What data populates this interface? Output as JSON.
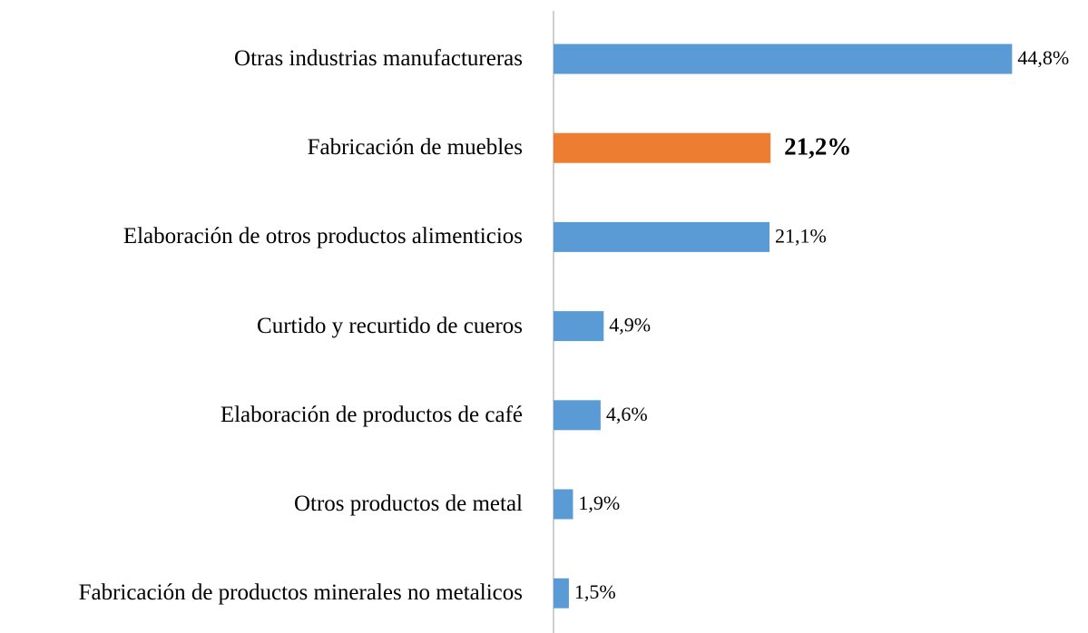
{
  "chart_data": {
    "type": "barh",
    "categories": [
      "Otras industrias manufactureras",
      "Fabricación de muebles",
      "Elaboración de otros productos alimenticios",
      "Curtido y recurtido de cueros",
      "Elaboración de productos de café",
      "Otros productos de metal",
      "Fabricación de productos minerales no metalicos"
    ],
    "values": [
      44.8,
      21.2,
      21.1,
      4.9,
      4.6,
      1.9,
      1.5
    ],
    "value_labels": [
      "44,8%",
      "21,2%",
      "21,1%",
      "4,9%",
      "4,6%",
      "1,9%",
      "1,5%"
    ],
    "colors": [
      "#5b9bd5",
      "#ed7d31",
      "#5b9bd5",
      "#5b9bd5",
      "#5b9bd5",
      "#5b9bd5",
      "#5b9bd5"
    ],
    "highlight": 1,
    "xlim": [
      0,
      50
    ]
  }
}
